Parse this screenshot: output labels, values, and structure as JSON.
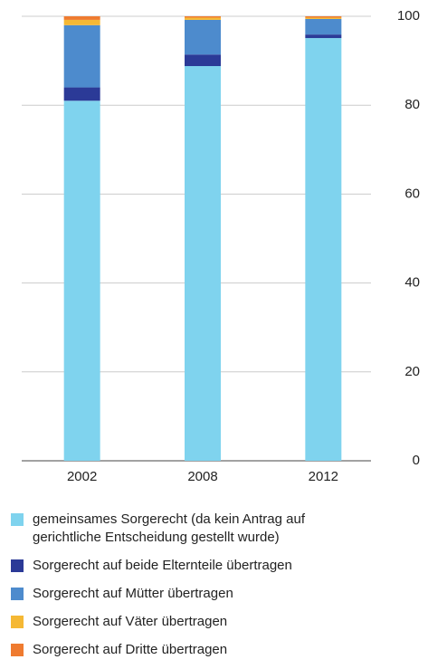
{
  "chart_data": {
    "type": "stacked_bar",
    "categories": [
      "2002",
      "2008",
      "2012"
    ],
    "series": [
      {
        "name": "gemeinsames Sorgerecht (da kein Antrag auf gerichtliche Entscheidung gestellt wurde)",
        "color": "#7fd3ee",
        "values": [
          81,
          88.8,
          95.1
        ]
      },
      {
        "name": "Sorgerecht auf beide Elternteile übertragen",
        "color": "#2b3a97",
        "values": [
          3,
          2.6,
          0.8
        ]
      },
      {
        "name": "Sorgerecht auf Mütter übertragen",
        "color": "#4d8bcd",
        "values": [
          14,
          7.8,
          3.5
        ]
      },
      {
        "name": "Sorgerecht auf Väter übertragen",
        "color": "#f5b834",
        "values": [
          1.2,
          0.5,
          0.3
        ]
      },
      {
        "name": "Sorgerecht auf Dritte übertragen",
        "color": "#ef7b30",
        "values": [
          0.8,
          0.3,
          0.3
        ]
      }
    ],
    "ylim": [
      0,
      100
    ],
    "yticks": [
      0,
      20,
      40,
      60,
      80,
      100
    ],
    "grid": true,
    "legend": "bottom"
  }
}
